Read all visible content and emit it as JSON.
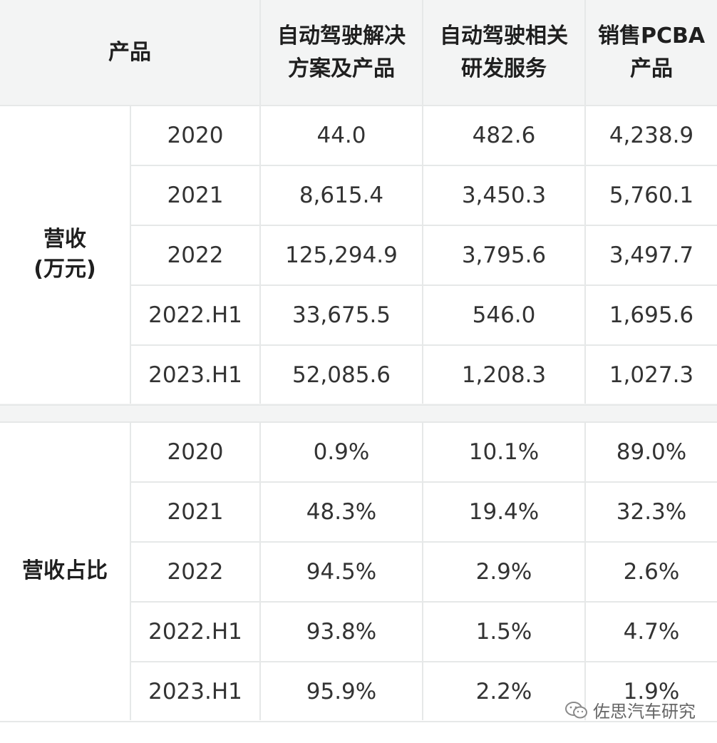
{
  "table": {
    "header": {
      "product": "产品",
      "col1": [
        "自动驾驶解决",
        "方案及产品"
      ],
      "col2": [
        "自动驾驶相关",
        "研发服务"
      ],
      "col3": [
        "销售PCBA",
        "产品"
      ]
    },
    "groups": [
      {
        "label": [
          "营收",
          "(万元)"
        ],
        "rows": [
          {
            "period": "2020",
            "v1": "44.0",
            "v2": "482.6",
            "v3": "4,238.9"
          },
          {
            "period": "2021",
            "v1": "8,615.4",
            "v2": "3,450.3",
            "v3": "5,760.1"
          },
          {
            "period": "2022",
            "v1": "125,294.9",
            "v2": "3,795.6",
            "v3": "3,497.7"
          },
          {
            "period": "2022.H1",
            "v1": "33,675.5",
            "v2": "546.0",
            "v3": "1,695.6"
          },
          {
            "period": "2023.H1",
            "v1": "52,085.6",
            "v2": "1,208.3",
            "v3": "1,027.3"
          }
        ]
      },
      {
        "label": [
          "营收占比"
        ],
        "rows": [
          {
            "period": "2020",
            "v1": "0.9%",
            "v2": "10.1%",
            "v3": "89.0%"
          },
          {
            "period": "2021",
            "v1": "48.3%",
            "v2": "19.4%",
            "v3": "32.3%"
          },
          {
            "period": "2022",
            "v1": "94.5%",
            "v2": "2.9%",
            "v3": "2.6%"
          },
          {
            "period": "2022.H1",
            "v1": "93.8%",
            "v2": "1.5%",
            "v3": "4.7%"
          },
          {
            "period": "2023.H1",
            "v1": "95.9%",
            "v2": "2.2%",
            "v3": "1.9%"
          }
        ]
      }
    ]
  },
  "watermark": {
    "text": "佐思汽车研究",
    "icon": "wechat-icon"
  }
}
